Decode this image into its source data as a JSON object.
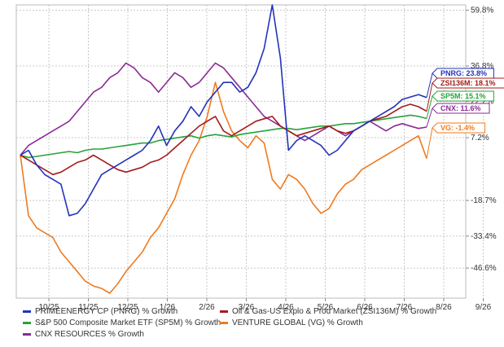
{
  "chart_data": {
    "type": "line",
    "title": "",
    "xlabel": "",
    "ylabel": "",
    "x_ticks": [
      "10/25",
      "11/25",
      "12/25",
      "1/26",
      "2/26",
      "3/26",
      "4/26",
      "5/26",
      "6/26",
      "7/26",
      "8/26",
      "9/26"
    ],
    "y_ticks": [
      "59.8%",
      "36.8%",
      "22.2%",
      "7.2%",
      "-18.7%",
      "-33.4%",
      "-46.6%"
    ],
    "ylim": [
      -59,
      62
    ],
    "grid": true,
    "legend_position": "bottom",
    "series": [
      {
        "name": "PRIMEENERGY CP (PNRG) % Growth",
        "tag": "PNRG: 23.8%",
        "color": "#2233bb",
        "values": [
          0,
          2,
          -4,
          -8,
          -10,
          -12,
          -25,
          -24,
          -20,
          -14,
          -8,
          -6,
          -4,
          -2,
          0,
          2,
          6,
          12,
          4,
          10,
          14,
          20,
          16,
          22,
          26,
          30,
          30,
          26,
          28,
          34,
          44,
          62,
          40,
          2,
          6,
          8,
          6,
          4,
          0,
          2,
          6,
          10,
          12,
          14,
          16,
          18,
          20,
          23,
          24,
          25,
          23.8
        ]
      },
      {
        "name": "Oil & Gas-US Explo & Prod Market (ZSI136M) % Growth",
        "tag": "ZSI136M: 18.1%",
        "color": "#a31c1c",
        "values": [
          0,
          -2,
          -4,
          -6,
          -8,
          -7,
          -5,
          -3,
          -2,
          0,
          -2,
          -4,
          -6,
          -7,
          -6,
          -5,
          -3,
          -2,
          0,
          3,
          6,
          9,
          12,
          14,
          16,
          10,
          8,
          10,
          12,
          14,
          15,
          16,
          12,
          10,
          8,
          9,
          10,
          11,
          12,
          10,
          9,
          10,
          12,
          14,
          15,
          16,
          18,
          20,
          21,
          20,
          18.1
        ]
      },
      {
        "name": "S&P 500 Composite Market ETF (SP5M) % Growth",
        "tag": "SP5M: 15.1%",
        "color": "#27a33a",
        "values": [
          0,
          -1,
          -0.5,
          0,
          0.5,
          1,
          1.5,
          1,
          2,
          2.5,
          2.5,
          3,
          3.5,
          4,
          4.5,
          5,
          5,
          6,
          6.5,
          7,
          7.5,
          8,
          7,
          8,
          8.5,
          8,
          7.5,
          8.5,
          9,
          9.5,
          10,
          10.5,
          11,
          11,
          10.5,
          11,
          11.5,
          12,
          12,
          12.5,
          13,
          13,
          13.5,
          14,
          14.5,
          15,
          15.5,
          16,
          16.5,
          16,
          15.1
        ]
      },
      {
        "name": "VENTURE GLOBAL (VG) % Growth",
        "tag": "VG: -1.4%",
        "color": "#f07a1e",
        "values": [
          0,
          -25,
          -30,
          -32,
          -34,
          -40,
          -44,
          -48,
          -52,
          -54,
          -55,
          -57,
          -53,
          -48,
          -44,
          -40,
          -34,
          -30,
          -24,
          -18,
          -8,
          0,
          6,
          16,
          30,
          18,
          10,
          6,
          3,
          8,
          5,
          -10,
          -14,
          -8,
          -10,
          -14,
          -20,
          -24,
          -22,
          -16,
          -12,
          -10,
          -6,
          -4,
          -2,
          0,
          2,
          4,
          6,
          8,
          -1.4
        ]
      },
      {
        "name": "CNX RESOURCES % Growth",
        "tag": "CNX: 11.6%",
        "color": "#8b2b96",
        "values": [
          0,
          4,
          6,
          8,
          10,
          12,
          14,
          18,
          22,
          26,
          28,
          32,
          34,
          38,
          36,
          32,
          30,
          26,
          30,
          34,
          32,
          28,
          30,
          34,
          38,
          36,
          32,
          28,
          24,
          20,
          16,
          14,
          12,
          10,
          8,
          6,
          8,
          10,
          12,
          10,
          8,
          10,
          12,
          14,
          12,
          10,
          12,
          13,
          12,
          11,
          11.6
        ]
      }
    ]
  }
}
